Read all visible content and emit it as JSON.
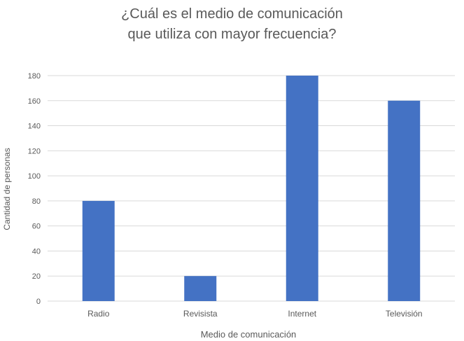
{
  "chart_data": {
    "type": "bar",
    "title": [
      "¿Cuál es el medio de comunicación",
      "que utiliza con mayor frecuencia?"
    ],
    "xlabel": "Medio de comunicación",
    "ylabel": "Cantidad de personas",
    "categories": [
      "Radio",
      "Revisista",
      "Internet",
      "Televisión"
    ],
    "values": [
      80,
      20,
      180,
      160
    ],
    "ylim": [
      0,
      180
    ],
    "yticks": [
      0,
      20,
      40,
      60,
      80,
      100,
      120,
      140,
      160,
      180
    ],
    "grid": true,
    "legend": "none"
  },
  "colors": {
    "bar": "#4472c4",
    "grid": "#d9d9d9",
    "text": "#595959"
  }
}
